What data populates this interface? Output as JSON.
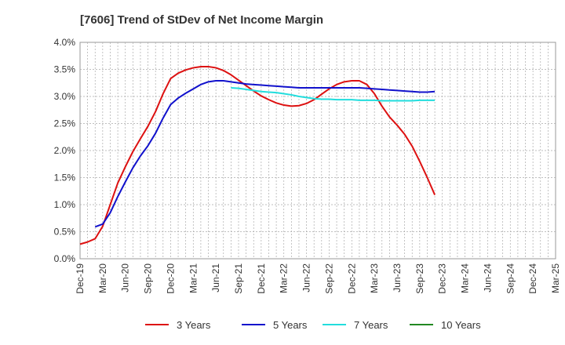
{
  "chart_data": {
    "type": "line",
    "title": "[7606]  Trend of StDev of Net Income Margin",
    "xlabel": "",
    "ylabel": "",
    "x_ticks": [
      "Dec-19",
      "Mar-20",
      "Jun-20",
      "Sep-20",
      "Dec-20",
      "Mar-21",
      "Jun-21",
      "Sep-21",
      "Dec-21",
      "Mar-22",
      "Jun-22",
      "Sep-22",
      "Dec-22",
      "Mar-23",
      "Jun-23",
      "Sep-23",
      "Dec-23",
      "Mar-24",
      "Jun-24",
      "Sep-24",
      "Dec-24",
      "Mar-25"
    ],
    "y_ticks": [
      "0.0%",
      "0.5%",
      "1.0%",
      "1.5%",
      "2.0%",
      "2.5%",
      "3.0%",
      "3.5%",
      "4.0%"
    ],
    "ylim": [
      0,
      4.0
    ],
    "grid": true,
    "legend_position": "bottom",
    "series": [
      {
        "name": "3 Years",
        "color": "#dd1111",
        "points": [
          [
            0,
            0.27
          ],
          [
            1,
            0.31
          ],
          [
            2,
            0.37
          ],
          [
            3,
            0.6
          ],
          [
            4,
            1.0
          ],
          [
            5,
            1.4
          ],
          [
            6,
            1.7
          ],
          [
            7,
            1.98
          ],
          [
            8,
            2.22
          ],
          [
            9,
            2.45
          ],
          [
            10,
            2.72
          ],
          [
            11,
            3.05
          ],
          [
            12,
            3.33
          ],
          [
            13,
            3.43
          ],
          [
            14,
            3.49
          ],
          [
            15,
            3.53
          ],
          [
            16,
            3.55
          ],
          [
            17,
            3.55
          ],
          [
            18,
            3.53
          ],
          [
            19,
            3.48
          ],
          [
            20,
            3.4
          ],
          [
            21,
            3.3
          ],
          [
            22,
            3.2
          ],
          [
            23,
            3.1
          ],
          [
            24,
            3.01
          ],
          [
            25,
            2.94
          ],
          [
            26,
            2.88
          ],
          [
            27,
            2.84
          ],
          [
            28,
            2.82
          ],
          [
            29,
            2.83
          ],
          [
            30,
            2.87
          ],
          [
            31,
            2.94
          ],
          [
            32,
            3.04
          ],
          [
            33,
            3.14
          ],
          [
            34,
            3.22
          ],
          [
            35,
            3.27
          ],
          [
            36,
            3.29
          ],
          [
            37,
            3.29
          ],
          [
            38,
            3.22
          ],
          [
            39,
            3.05
          ],
          [
            40,
            2.82
          ],
          [
            41,
            2.62
          ],
          [
            42,
            2.47
          ],
          [
            43,
            2.3
          ],
          [
            44,
            2.08
          ],
          [
            45,
            1.8
          ],
          [
            46,
            1.5
          ],
          [
            47,
            1.18
          ]
        ]
      },
      {
        "name": "5 Years",
        "color": "#1111cc",
        "points": [
          [
            2,
            0.59
          ],
          [
            3,
            0.64
          ],
          [
            4,
            0.85
          ],
          [
            5,
            1.15
          ],
          [
            6,
            1.42
          ],
          [
            7,
            1.68
          ],
          [
            8,
            1.9
          ],
          [
            9,
            2.09
          ],
          [
            10,
            2.32
          ],
          [
            11,
            2.6
          ],
          [
            12,
            2.85
          ],
          [
            13,
            2.97
          ],
          [
            14,
            3.06
          ],
          [
            15,
            3.14
          ],
          [
            16,
            3.22
          ],
          [
            17,
            3.27
          ],
          [
            18,
            3.29
          ],
          [
            19,
            3.29
          ],
          [
            20,
            3.27
          ],
          [
            21,
            3.25
          ],
          [
            22,
            3.23
          ],
          [
            23,
            3.22
          ],
          [
            24,
            3.21
          ],
          [
            25,
            3.2
          ],
          [
            26,
            3.19
          ],
          [
            27,
            3.18
          ],
          [
            28,
            3.17
          ],
          [
            29,
            3.16
          ],
          [
            30,
            3.16
          ],
          [
            31,
            3.16
          ],
          [
            32,
            3.16
          ],
          [
            33,
            3.16
          ],
          [
            34,
            3.16
          ],
          [
            35,
            3.16
          ],
          [
            36,
            3.16
          ],
          [
            37,
            3.16
          ],
          [
            38,
            3.15
          ],
          [
            39,
            3.14
          ],
          [
            40,
            3.13
          ],
          [
            41,
            3.12
          ],
          [
            42,
            3.11
          ],
          [
            43,
            3.1
          ],
          [
            44,
            3.09
          ],
          [
            45,
            3.08
          ],
          [
            46,
            3.08
          ],
          [
            47,
            3.09
          ]
        ]
      },
      {
        "name": "7 Years",
        "color": "#22dddd",
        "points": [
          [
            20,
            3.16
          ],
          [
            21,
            3.15
          ],
          [
            22,
            3.13
          ],
          [
            23,
            3.11
          ],
          [
            24,
            3.09
          ],
          [
            25,
            3.08
          ],
          [
            26,
            3.07
          ],
          [
            27,
            3.05
          ],
          [
            28,
            3.03
          ],
          [
            29,
            3.0
          ],
          [
            30,
            2.98
          ],
          [
            31,
            2.96
          ],
          [
            32,
            2.95
          ],
          [
            33,
            2.95
          ],
          [
            34,
            2.94
          ],
          [
            35,
            2.94
          ],
          [
            36,
            2.94
          ],
          [
            37,
            2.93
          ],
          [
            38,
            2.93
          ],
          [
            39,
            2.93
          ],
          [
            40,
            2.92
          ],
          [
            41,
            2.92
          ],
          [
            42,
            2.92
          ],
          [
            43,
            2.92
          ],
          [
            44,
            2.92
          ],
          [
            45,
            2.93
          ],
          [
            46,
            2.93
          ],
          [
            47,
            2.93
          ]
        ]
      },
      {
        "name": "10 Years",
        "color": "#228822",
        "points": []
      }
    ]
  }
}
